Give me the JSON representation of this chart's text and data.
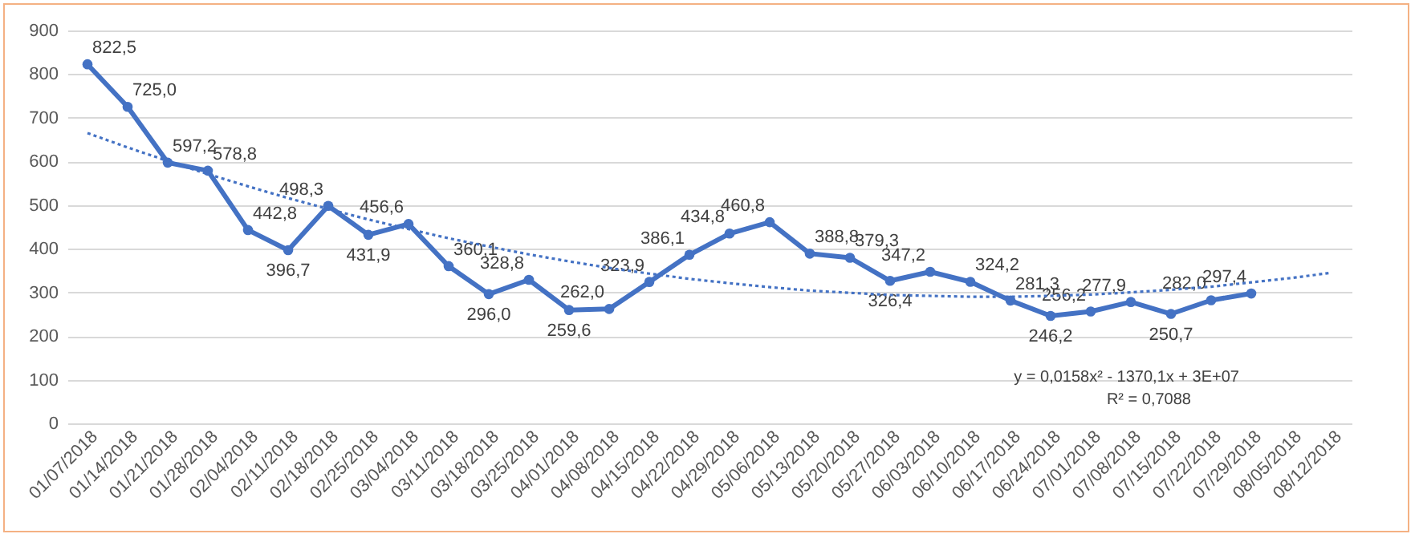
{
  "chart_data": {
    "type": "line",
    "categories": [
      "01/07/2018",
      "01/14/2018",
      "01/21/2018",
      "01/28/2018",
      "02/04/2018",
      "02/11/2018",
      "02/18/2018",
      "02/25/2018",
      "03/04/2018",
      "03/11/2018",
      "03/18/2018",
      "03/25/2018",
      "04/01/2018",
      "04/08/2018",
      "04/15/2018",
      "04/22/2018",
      "04/29/2018",
      "05/06/2018",
      "05/13/2018",
      "05/20/2018",
      "05/27/2018",
      "06/03/2018",
      "06/10/2018",
      "06/17/2018",
      "06/24/2018",
      "07/01/2018",
      "07/08/2018",
      "07/15/2018",
      "07/22/2018",
      "07/29/2018",
      "08/05/2018",
      "08/12/2018"
    ],
    "series": [
      {
        "type": "line",
        "color": "#4472c4",
        "marker": "circle",
        "line_style": "solid",
        "values": [
          822.5,
          725.0,
          597.2,
          578.8,
          442.8,
          396.7,
          498.3,
          431.9,
          456.6,
          360.1,
          296.0,
          328.8,
          259.6,
          262.0,
          323.9,
          386.1,
          434.8,
          460.8,
          388.8,
          379.3,
          326.4,
          347.2,
          324.2,
          281.3,
          246.2,
          256.2,
          277.9,
          250.7,
          282.0,
          297.4,
          null,
          null
        ],
        "value_labels": [
          "822,5",
          "725,0",
          "597,2",
          "578,8",
          "442,8",
          "396,7",
          "498,3",
          "431,9",
          "456,6",
          "360,1",
          "296,0",
          "328,8",
          "259,6",
          "262,0",
          "323,9",
          "386,1",
          "434,8",
          "460,8",
          "388,8",
          "379,3",
          "326,4",
          "347,2",
          "324,2",
          "281,3",
          "246,2",
          "256,2",
          "277,9",
          "250,7",
          "282,0",
          "297,4",
          null,
          null
        ]
      },
      {
        "type": "line",
        "color": "#4472c4",
        "marker": "none",
        "line_style": "dotted",
        "values": [
          665,
          632,
          601,
          571,
          543,
          516,
          491,
          467,
          445,
          424,
          405,
          387,
          371,
          356,
          343,
          331,
          321,
          312,
          304,
          299,
          294,
          292,
          290,
          290,
          292,
          295,
          300,
          306,
          313,
          323,
          333,
          345
        ]
      }
    ],
    "ylim": [
      0,
      900
    ],
    "yticks": [
      0,
      100,
      200,
      300,
      400,
      500,
      600,
      700,
      800,
      900
    ],
    "grid": "y",
    "annotations": [
      "y = 0,0158x² - 1370,1x + 3E+07",
      "R² = 0,7088"
    ]
  }
}
